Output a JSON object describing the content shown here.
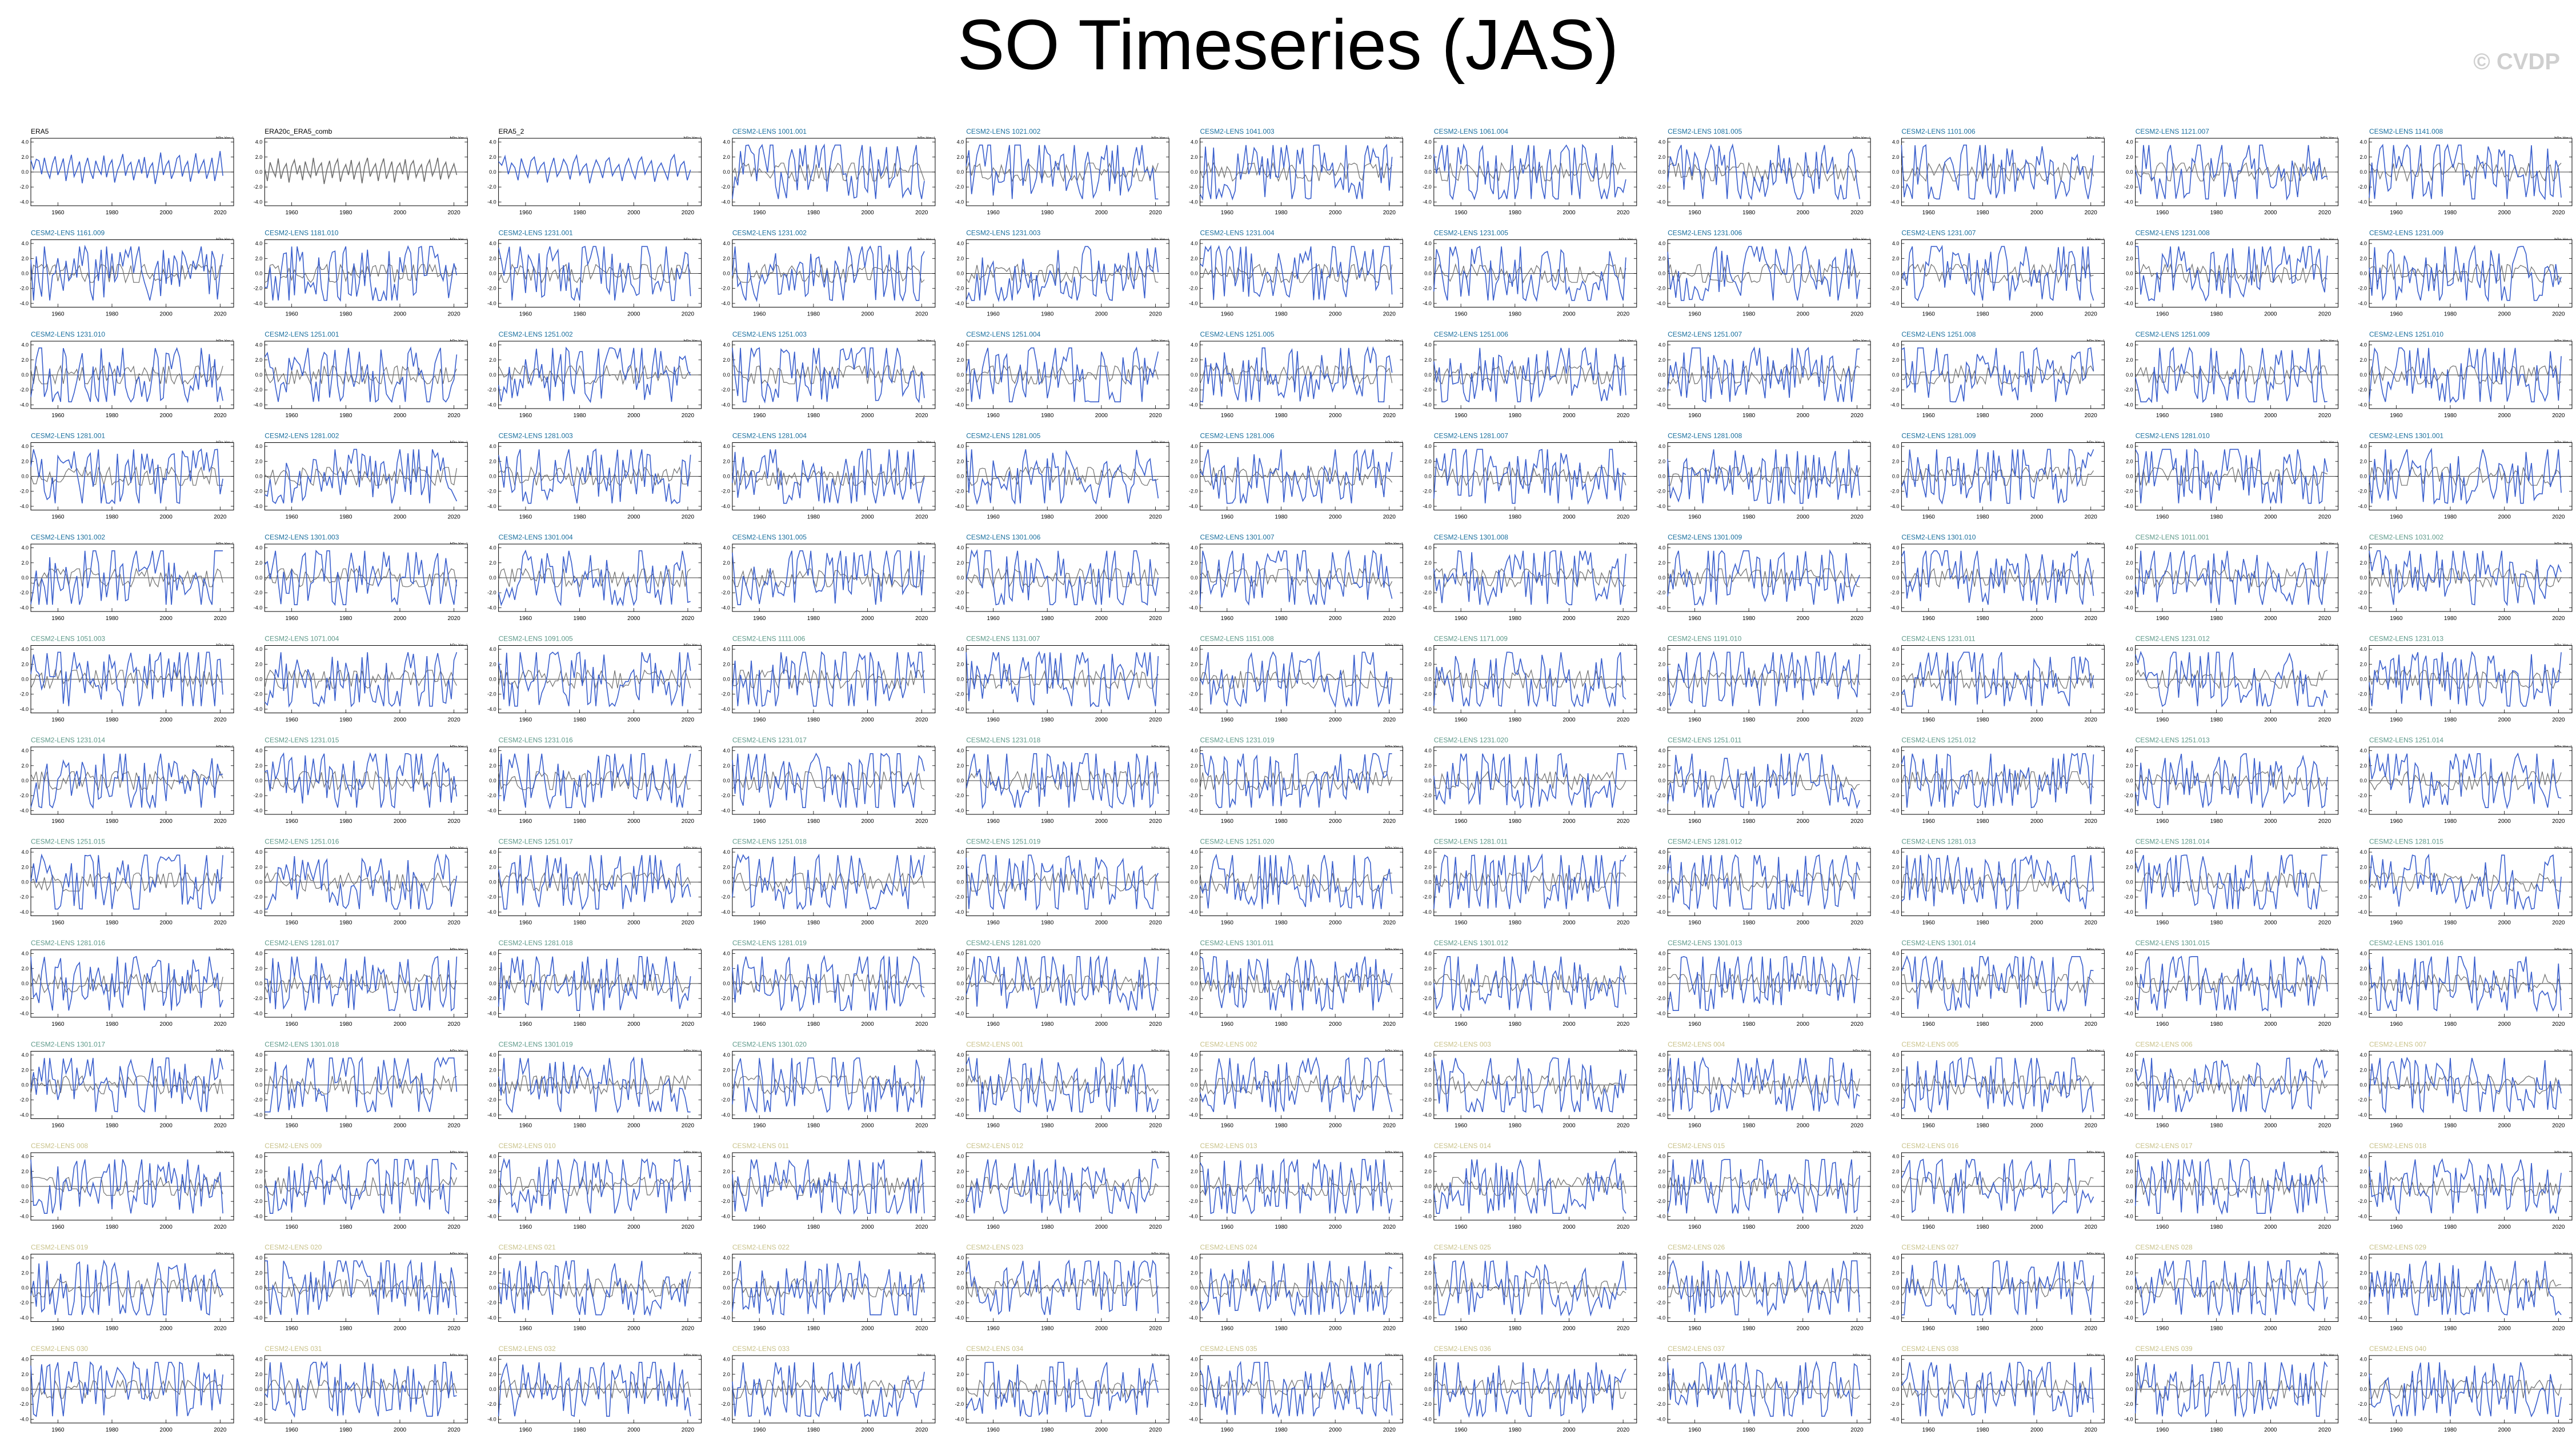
{
  "title": "SO Timeseries (JAS)",
  "watermark": "© CVDP",
  "units": "hPa Yrs⁻¹",
  "colors": {
    "series": "#3a5fcd",
    "reference": "#6e6e6e",
    "label_obs": "#000000",
    "label_lens": "#1a6f9e",
    "label_lens_mid": "#5f9a8a",
    "label_lens_late": "#c9c28a"
  },
  "chart_data": {
    "type": "line",
    "grid": "small multiples, 11 columns x 13 rows",
    "xlim": [
      1950,
      2025
    ],
    "x_ticks": [
      1960,
      1980,
      2000,
      2020
    ],
    "ylim": [
      -4.5,
      4.5
    ],
    "y_ticks": [
      -4.0,
      -2.0,
      0.0,
      2.0,
      4.0
    ],
    "y_tick_labels": [
      "-4.0",
      "-2.0",
      "0.0",
      "2.0",
      "4.0"
    ],
    "series": [
      {
        "name": "ERA5",
        "label_color": "label_obs",
        "single": true,
        "values": [
          1.6,
          0.4,
          1.7,
          1.5,
          -0.3,
          1.9,
          0.2,
          -0.8,
          1.1,
          2.1,
          -0.4,
          0.6,
          1.8,
          -1.2,
          0.9,
          2.3,
          -0.6,
          0.3,
          1.4,
          -1.5,
          0.7,
          1.9,
          0.1,
          -0.9,
          1.5,
          0.4,
          -0.3,
          2.2,
          -0.7,
          0.9,
          1.6,
          -1.4,
          0.2,
          1.1,
          2.4,
          -0.5,
          0.8,
          1.3,
          -1.1,
          0.5,
          1.7,
          -0.2,
          2.0,
          -0.8,
          0.6,
          1.2,
          -1.6,
          0.3,
          2.6,
          -0.4,
          0.9,
          1.5,
          -0.9,
          0.1,
          1.8,
          2.2,
          -0.6,
          0.7,
          1.4,
          -1.3,
          0.4,
          2.5,
          -0.2,
          0.8,
          1.6,
          -0.9,
          0.3,
          1.9,
          -1.2,
          0.6,
          2.8,
          -0.5
        ]
      },
      {
        "name": "ERA20c_ERA5_comb",
        "label_color": "label_obs",
        "single": true,
        "values": [
          0.5,
          -1.2,
          1.3,
          0.2,
          -0.6,
          1.8,
          -0.9,
          0.4,
          1.1,
          -1.4,
          0.7,
          1.6,
          -0.3,
          0.9,
          -1.1,
          1.4,
          0.1,
          -0.7,
          1.9,
          -0.5,
          0.6,
          1.2,
          -1.6,
          0.3,
          1.5,
          -0.8,
          0.9,
          1.7,
          -1.3,
          0.2,
          1.0,
          -0.4,
          1.6,
          -1.0,
          0.5,
          1.3,
          -1.5,
          0.8,
          1.9,
          -0.6,
          0.4,
          1.1,
          -1.2,
          0.7,
          1.8,
          -0.9,
          0.2,
          1.4,
          -1.4,
          0.6,
          1.2,
          -0.3,
          1.7,
          -1.1,
          0.9,
          1.5,
          -0.7,
          0.3,
          1.0,
          -1.3,
          0.8,
          1.6,
          -0.5,
          0.4,
          1.9,
          -1.0,
          0.6,
          1.3,
          -0.8,
          0.2,
          1.1,
          -0.4
        ]
      },
      {
        "name": "ERA5_2",
        "label_color": "label_obs",
        "single": true,
        "values": [
          1.4,
          0.9,
          2.1,
          -0.3,
          1.2,
          0.6,
          -1.1,
          1.8,
          0.4,
          -0.7,
          1.5,
          2.0,
          -0.2,
          0.8,
          1.3,
          -1.4,
          0.5,
          1.9,
          -0.6,
          0.2,
          1.7,
          0.9,
          -1.0,
          1.2,
          2.2,
          -0.4,
          0.6,
          1.1,
          -1.5,
          0.3,
          1.6,
          0.7,
          -0.8,
          1.4,
          1.9,
          -0.5,
          0.4,
          1.0,
          -1.2,
          0.8,
          1.8,
          0.2,
          -0.9,
          1.3,
          2.0,
          -0.3,
          0.7,
          1.5,
          -1.3,
          0.5,
          1.2,
          0.1,
          -1.0,
          1.6,
          2.3,
          -0.6,
          0.9,
          1.4,
          -1.1,
          0.3
        ]
      },
      {
        "name": "CESM2-LENS 1001.001",
        "label_color": "label_lens"
      },
      {
        "name": "CESM2-LENS 1021.002",
        "label_color": "label_lens"
      },
      {
        "name": "CESM2-LENS 1041.003",
        "label_color": "label_lens"
      },
      {
        "name": "CESM2-LENS 1061.004",
        "label_color": "label_lens"
      },
      {
        "name": "CESM2-LENS 1081.005",
        "label_color": "label_lens"
      },
      {
        "name": "CESM2-LENS 1101.006",
        "label_color": "label_lens"
      },
      {
        "name": "CESM2-LENS 1121.007",
        "label_color": "label_lens"
      },
      {
        "name": "CESM2-LENS 1141.008",
        "label_color": "label_lens"
      },
      {
        "name": "CESM2-LENS 1161.009",
        "label_color": "label_lens"
      },
      {
        "name": "CESM2-LENS 1181.010",
        "label_color": "label_lens"
      },
      {
        "name": "CESM2-LENS 1231.001",
        "label_color": "label_lens"
      },
      {
        "name": "CESM2-LENS 1231.002",
        "label_color": "label_lens"
      },
      {
        "name": "CESM2-LENS 1231.003",
        "label_color": "label_lens"
      },
      {
        "name": "CESM2-LENS 1231.004",
        "label_color": "label_lens"
      },
      {
        "name": "CESM2-LENS 1231.005",
        "label_color": "label_lens"
      },
      {
        "name": "CESM2-LENS 1231.006",
        "label_color": "label_lens"
      },
      {
        "name": "CESM2-LENS 1231.007",
        "label_color": "label_lens"
      },
      {
        "name": "CESM2-LENS 1231.008",
        "label_color": "label_lens"
      },
      {
        "name": "CESM2-LENS 1231.009",
        "label_color": "label_lens"
      },
      {
        "name": "CESM2-LENS 1231.010",
        "label_color": "label_lens"
      },
      {
        "name": "CESM2-LENS 1251.001",
        "label_color": "label_lens"
      },
      {
        "name": "CESM2-LENS 1251.002",
        "label_color": "label_lens"
      },
      {
        "name": "CESM2-LENS 1251.003",
        "label_color": "label_lens"
      },
      {
        "name": "CESM2-LENS 1251.004",
        "label_color": "label_lens"
      },
      {
        "name": "CESM2-LENS 1251.005",
        "label_color": "label_lens"
      },
      {
        "name": "CESM2-LENS 1251.006",
        "label_color": "label_lens"
      },
      {
        "name": "CESM2-LENS 1251.007",
        "label_color": "label_lens"
      },
      {
        "name": "CESM2-LENS 1251.008",
        "label_color": "label_lens"
      },
      {
        "name": "CESM2-LENS 1251.009",
        "label_color": "label_lens"
      },
      {
        "name": "CESM2-LENS 1251.010",
        "label_color": "label_lens"
      },
      {
        "name": "CESM2-LENS 1281.001",
        "label_color": "label_lens"
      },
      {
        "name": "CESM2-LENS 1281.002",
        "label_color": "label_lens"
      },
      {
        "name": "CESM2-LENS 1281.003",
        "label_color": "label_lens"
      },
      {
        "name": "CESM2-LENS 1281.004",
        "label_color": "label_lens"
      },
      {
        "name": "CESM2-LENS 1281.005",
        "label_color": "label_lens"
      },
      {
        "name": "CESM2-LENS 1281.006",
        "label_color": "label_lens"
      },
      {
        "name": "CESM2-LENS 1281.007",
        "label_color": "label_lens"
      },
      {
        "name": "CESM2-LENS 1281.008",
        "label_color": "label_lens"
      },
      {
        "name": "CESM2-LENS 1281.009",
        "label_color": "label_lens"
      },
      {
        "name": "CESM2-LENS 1281.010",
        "label_color": "label_lens"
      },
      {
        "name": "CESM2-LENS 1301.001",
        "label_color": "label_lens"
      },
      {
        "name": "CESM2-LENS 1301.002",
        "label_color": "label_lens"
      },
      {
        "name": "CESM2-LENS 1301.003",
        "label_color": "label_lens"
      },
      {
        "name": "CESM2-LENS 1301.004",
        "label_color": "label_lens"
      },
      {
        "name": "CESM2-LENS 1301.005",
        "label_color": "label_lens"
      },
      {
        "name": "CESM2-LENS 1301.006",
        "label_color": "label_lens"
      },
      {
        "name": "CESM2-LENS 1301.007",
        "label_color": "label_lens"
      },
      {
        "name": "CESM2-LENS 1301.008",
        "label_color": "label_lens"
      },
      {
        "name": "CESM2-LENS 1301.009",
        "label_color": "label_lens"
      },
      {
        "name": "CESM2-LENS 1301.010",
        "label_color": "label_lens"
      },
      {
        "name": "CESM2-LENS 1011.001",
        "label_color": "label_lens_mid"
      },
      {
        "name": "CESM2-LENS 1031.002",
        "label_color": "label_lens_mid"
      },
      {
        "name": "CESM2-LENS 1051.003",
        "label_color": "label_lens_mid"
      },
      {
        "name": "CESM2-LENS 1071.004",
        "label_color": "label_lens_mid"
      },
      {
        "name": "CESM2-LENS 1091.005",
        "label_color": "label_lens_mid"
      },
      {
        "name": "CESM2-LENS 1111.006",
        "label_color": "label_lens_mid"
      },
      {
        "name": "CESM2-LENS 1131.007",
        "label_color": "label_lens_mid"
      },
      {
        "name": "CESM2-LENS 1151.008",
        "label_color": "label_lens_mid"
      },
      {
        "name": "CESM2-LENS 1171.009",
        "label_color": "label_lens_mid"
      },
      {
        "name": "CESM2-LENS 1191.010",
        "label_color": "label_lens_mid"
      },
      {
        "name": "CESM2-LENS 1231.011",
        "label_color": "label_lens_mid"
      },
      {
        "name": "CESM2-LENS 1231.012",
        "label_color": "label_lens_mid"
      },
      {
        "name": "CESM2-LENS 1231.013",
        "label_color": "label_lens_mid"
      },
      {
        "name": "CESM2-LENS 1231.014",
        "label_color": "label_lens_mid"
      },
      {
        "name": "CESM2-LENS 1231.015",
        "label_color": "label_lens_mid"
      },
      {
        "name": "CESM2-LENS 1231.016",
        "label_color": "label_lens_mid"
      },
      {
        "name": "CESM2-LENS 1231.017",
        "label_color": "label_lens_mid"
      },
      {
        "name": "CESM2-LENS 1231.018",
        "label_color": "label_lens_mid"
      },
      {
        "name": "CESM2-LENS 1231.019",
        "label_color": "label_lens_mid"
      },
      {
        "name": "CESM2-LENS 1231.020",
        "label_color": "label_lens_mid"
      },
      {
        "name": "CESM2-LENS 1251.011",
        "label_color": "label_lens_mid"
      },
      {
        "name": "CESM2-LENS 1251.012",
        "label_color": "label_lens_mid"
      },
      {
        "name": "CESM2-LENS 1251.013",
        "label_color": "label_lens_mid"
      },
      {
        "name": "CESM2-LENS 1251.014",
        "label_color": "label_lens_mid"
      },
      {
        "name": "CESM2-LENS 1251.015",
        "label_color": "label_lens_mid"
      },
      {
        "name": "CESM2-LENS 1251.016",
        "label_color": "label_lens_mid"
      },
      {
        "name": "CESM2-LENS 1251.017",
        "label_color": "label_lens_mid"
      },
      {
        "name": "CESM2-LENS 1251.018",
        "label_color": "label_lens_mid"
      },
      {
        "name": "CESM2-LENS 1251.019",
        "label_color": "label_lens_mid"
      },
      {
        "name": "CESM2-LENS 1251.020",
        "label_color": "label_lens_mid"
      },
      {
        "name": "CESM2-LENS 1281.011",
        "label_color": "label_lens_mid"
      },
      {
        "name": "CESM2-LENS 1281.012",
        "label_color": "label_lens_mid"
      },
      {
        "name": "CESM2-LENS 1281.013",
        "label_color": "label_lens_mid"
      },
      {
        "name": "CESM2-LENS 1281.014",
        "label_color": "label_lens_mid"
      },
      {
        "name": "CESM2-LENS 1281.015",
        "label_color": "label_lens_mid"
      },
      {
        "name": "CESM2-LENS 1281.016",
        "label_color": "label_lens_mid"
      },
      {
        "name": "CESM2-LENS 1281.017",
        "label_color": "label_lens_mid"
      },
      {
        "name": "CESM2-LENS 1281.018",
        "label_color": "label_lens_mid"
      },
      {
        "name": "CESM2-LENS 1281.019",
        "label_color": "label_lens_mid"
      },
      {
        "name": "CESM2-LENS 1281.020",
        "label_color": "label_lens_mid"
      },
      {
        "name": "CESM2-LENS 1301.011",
        "label_color": "label_lens_mid"
      },
      {
        "name": "CESM2-LENS 1301.012",
        "label_color": "label_lens_mid"
      },
      {
        "name": "CESM2-LENS 1301.013",
        "label_color": "label_lens_mid"
      },
      {
        "name": "CESM2-LENS 1301.014",
        "label_color": "label_lens_mid"
      },
      {
        "name": "CESM2-LENS 1301.015",
        "label_color": "label_lens_mid"
      },
      {
        "name": "CESM2-LENS 1301.016",
        "label_color": "label_lens_mid"
      },
      {
        "name": "CESM2-LENS 1301.017",
        "label_color": "label_lens_mid"
      },
      {
        "name": "CESM2-LENS 1301.018",
        "label_color": "label_lens_mid"
      },
      {
        "name": "CESM2-LENS 1301.019",
        "label_color": "label_lens_mid"
      },
      {
        "name": "CESM2-LENS 1301.020",
        "label_color": "label_lens_mid"
      },
      {
        "name": "CESM2-LENS 001",
        "label_color": "label_lens_late"
      },
      {
        "name": "CESM2-LENS 002",
        "label_color": "label_lens_late"
      },
      {
        "name": "CESM2-LENS 003",
        "label_color": "label_lens_late"
      },
      {
        "name": "CESM2-LENS 004",
        "label_color": "label_lens_late"
      },
      {
        "name": "CESM2-LENS 005",
        "label_color": "label_lens_late"
      },
      {
        "name": "CESM2-LENS 006",
        "label_color": "label_lens_late"
      },
      {
        "name": "CESM2-LENS 007",
        "label_color": "label_lens_late"
      },
      {
        "name": "CESM2-LENS 008",
        "label_color": "label_lens_late"
      },
      {
        "name": "CESM2-LENS 009",
        "label_color": "label_lens_late"
      },
      {
        "name": "CESM2-LENS 010",
        "label_color": "label_lens_late"
      },
      {
        "name": "CESM2-LENS 011",
        "label_color": "label_lens_late"
      },
      {
        "name": "CESM2-LENS 012",
        "label_color": "label_lens_late"
      },
      {
        "name": "CESM2-LENS 013",
        "label_color": "label_lens_late"
      },
      {
        "name": "CESM2-LENS 014",
        "label_color": "label_lens_late"
      },
      {
        "name": "CESM2-LENS 015",
        "label_color": "label_lens_late"
      },
      {
        "name": "CESM2-LENS 016",
        "label_color": "label_lens_late"
      },
      {
        "name": "CESM2-LENS 017",
        "label_color": "label_lens_late"
      },
      {
        "name": "CESM2-LENS 018",
        "label_color": "label_lens_late"
      },
      {
        "name": "CESM2-LENS 019",
        "label_color": "label_lens_late"
      },
      {
        "name": "CESM2-LENS 020",
        "label_color": "label_lens_late"
      },
      {
        "name": "CESM2-LENS 021",
        "label_color": "label_lens_late"
      },
      {
        "name": "CESM2-LENS 022",
        "label_color": "label_lens_late"
      },
      {
        "name": "CESM2-LENS 023",
        "label_color": "label_lens_late"
      },
      {
        "name": "CESM2-LENS 024",
        "label_color": "label_lens_late"
      },
      {
        "name": "CESM2-LENS 025",
        "label_color": "label_lens_late"
      },
      {
        "name": "CESM2-LENS 026",
        "label_color": "label_lens_late"
      },
      {
        "name": "CESM2-LENS 027",
        "label_color": "label_lens_late"
      },
      {
        "name": "CESM2-LENS 028",
        "label_color": "label_lens_late"
      },
      {
        "name": "CESM2-LENS 029",
        "label_color": "label_lens_late"
      },
      {
        "name": "CESM2-LENS 030",
        "label_color": "label_lens_late"
      },
      {
        "name": "CESM2-LENS 031",
        "label_color": "label_lens_late"
      },
      {
        "name": "CESM2-LENS 032",
        "label_color": "label_lens_late"
      },
      {
        "name": "CESM2-LENS 033",
        "label_color": "label_lens_late"
      },
      {
        "name": "CESM2-LENS 034",
        "label_color": "label_lens_late"
      },
      {
        "name": "CESM2-LENS 035",
        "label_color": "label_lens_late"
      },
      {
        "name": "CESM2-LENS 036",
        "label_color": "label_lens_late"
      },
      {
        "name": "CESM2-LENS 037",
        "label_color": "label_lens_late"
      },
      {
        "name": "CESM2-LENS 038",
        "label_color": "label_lens_late"
      },
      {
        "name": "CESM2-LENS 039",
        "label_color": "label_lens_late"
      },
      {
        "name": "CESM2-LENS 040",
        "label_color": "label_lens_late"
      }
    ]
  }
}
